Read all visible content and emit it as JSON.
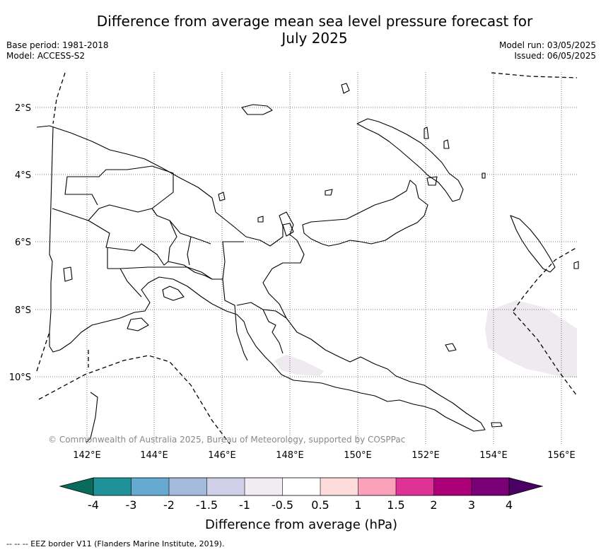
{
  "header": {
    "title_line1": "Difference from average mean sea level pressure forecast for",
    "title_line2": "July 2025",
    "base_period": "Base period: 1981-2018",
    "model": "Model: ACCESS-S2",
    "model_run": "Model run: 03/05/2025",
    "issued": "Issued: 06/05/2025"
  },
  "map": {
    "lat_labels": [
      "2°S",
      "4°S",
      "6°S",
      "8°S",
      "10°S"
    ],
    "lon_labels": [
      "142°E",
      "144°E",
      "146°E",
      "148°E",
      "150°E",
      "152°E",
      "154°E",
      "156°E"
    ],
    "grid": "dotted",
    "copyright": "© Commonwealth of Australia 2025, Bureau of Meteorology, supported by COSPPac"
  },
  "legend": {
    "title": "Difference from average (hPa)",
    "tick_labels": [
      "-4",
      "-3",
      "-2",
      "-1.5",
      "-1",
      "-0.5",
      "0.5",
      "1",
      "1.5",
      "2",
      "3",
      "4"
    ],
    "colors": [
      "#0a6b5b",
      "#1e9298",
      "#66a9d1",
      "#a3badb",
      "#cfd0e8",
      "#f1ecf2",
      "#ffffff",
      "#ffdcdc",
      "#fba2ba",
      "#df3295",
      "#ab0078",
      "#7a0078",
      "#4b0064"
    ]
  },
  "footer": {
    "eez_note": "-- -- -- EEZ border V11 (Flanders Marine Institute, 2019)."
  }
}
